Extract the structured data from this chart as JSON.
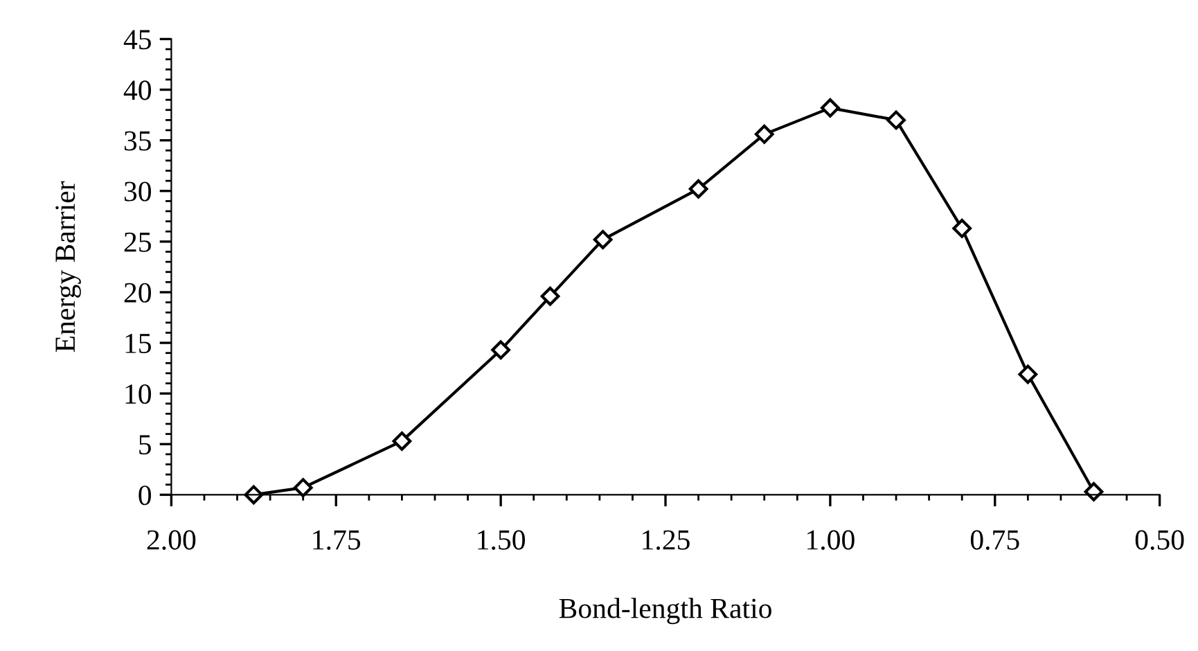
{
  "chart_data": {
    "type": "line",
    "xlabel": "Bond-length Ratio",
    "ylabel": "Energy Barrier",
    "x": [
      1.875,
      1.8,
      1.65,
      1.5,
      1.425,
      1.345,
      1.2,
      1.1,
      1.0,
      0.9,
      0.8,
      0.7,
      0.6
    ],
    "series": [
      {
        "color": "#000000",
        "values": [
          0,
          0.7,
          5.3,
          14.3,
          19.6,
          25.2,
          30.2,
          35.6,
          38.2,
          37.0,
          26.3,
          11.9,
          0.3
        ]
      }
    ],
    "xlim": [
      2.0,
      0.5
    ],
    "ylim": [
      0,
      45
    ],
    "xticks": [
      {
        "value": 2.0,
        "label": "2.00"
      },
      {
        "value": 1.75,
        "label": "1.75"
      },
      {
        "value": 1.5,
        "label": "1.50"
      },
      {
        "value": 1.25,
        "label": "1.25"
      },
      {
        "value": 1.0,
        "label": "1.00"
      },
      {
        "value": 0.75,
        "label": "0.75"
      },
      {
        "value": 0.5,
        "label": "0.50"
      }
    ],
    "yticks": [
      0,
      5,
      10,
      15,
      20,
      25,
      30,
      35,
      40,
      45
    ],
    "marker": "diamond",
    "line_style": "solid",
    "grid": false,
    "legend": false
  }
}
